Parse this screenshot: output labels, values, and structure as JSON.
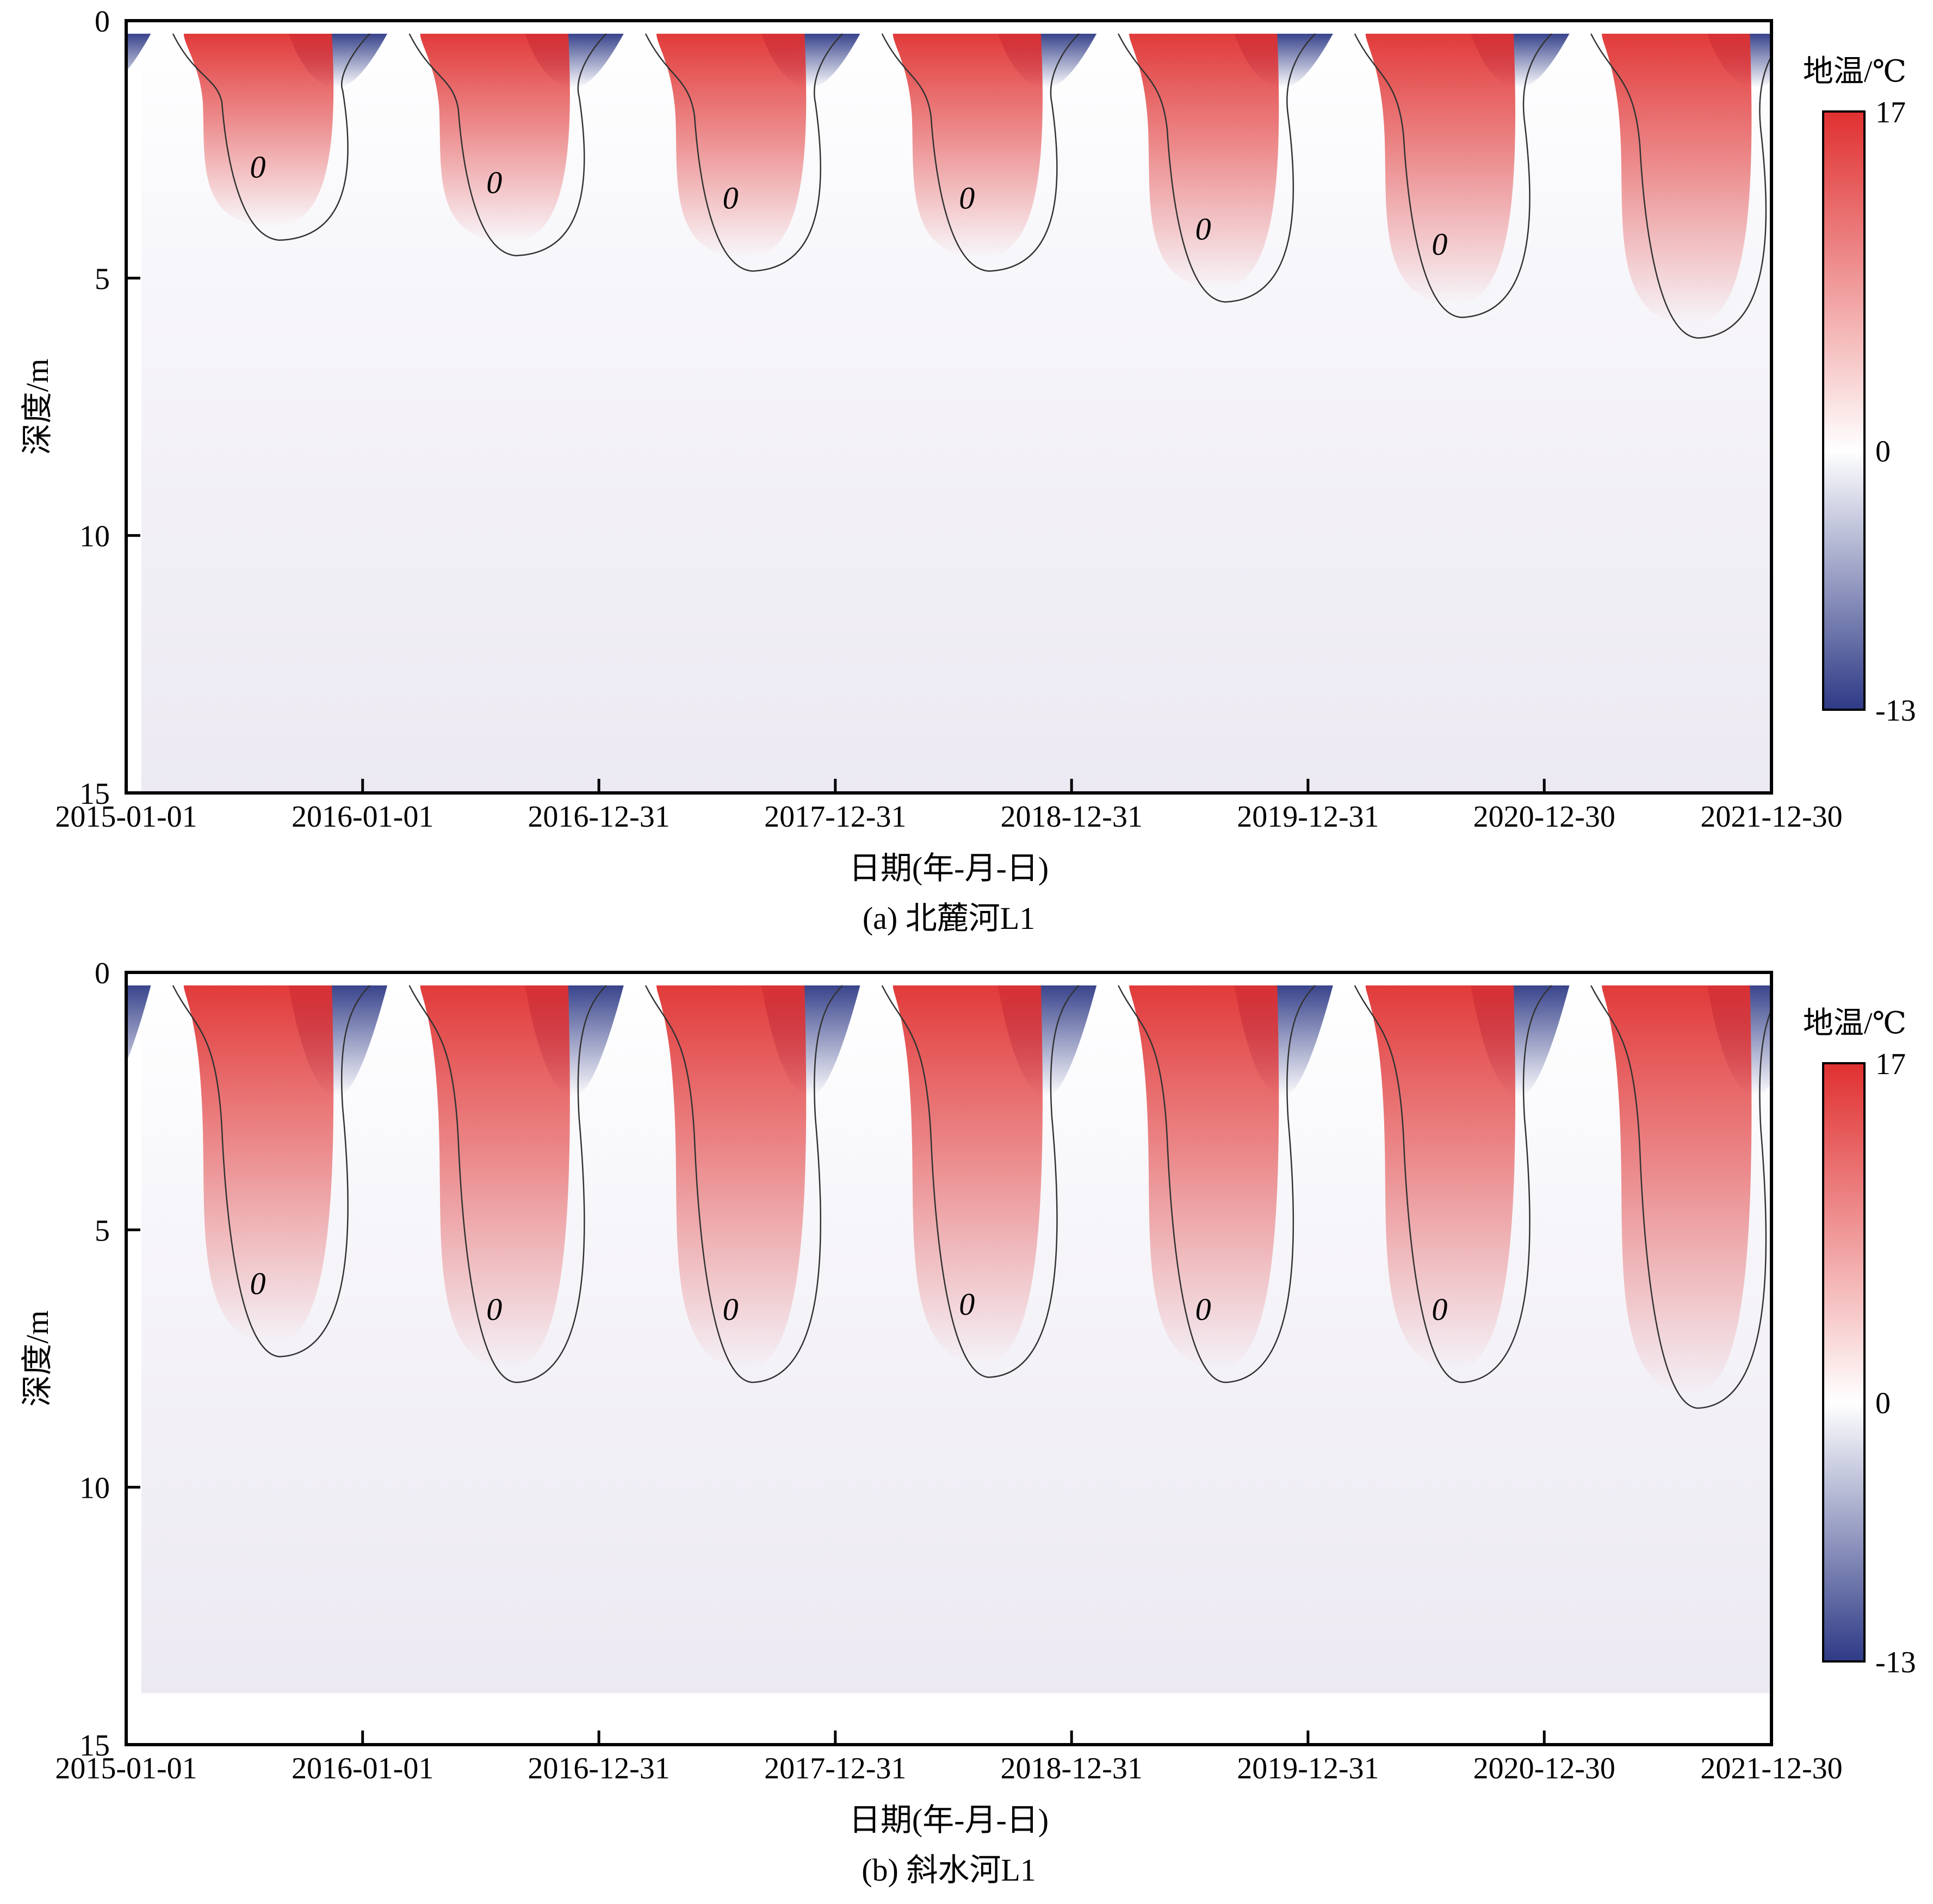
{
  "colors": {
    "warm_max": "#e03030",
    "neutral": "#ffffff",
    "cold_min": "#2e3a86",
    "contour_line": "#333333",
    "deep_tint": "#ece9f2"
  },
  "chart_data": [
    {
      "type": "heatmap",
      "caption": "(a) 北麓河L1",
      "xlabel": "日期(年-月-日)",
      "ylabel": "深度/m",
      "x_ticks": [
        "2015-01-01",
        "2016-01-01",
        "2016-12-31",
        "2017-12-31",
        "2018-12-31",
        "2019-12-31",
        "2020-12-30",
        "2021-12-30"
      ],
      "y_ticks": [
        "0",
        "5",
        "10",
        "15"
      ],
      "xlim": [
        "2015-01-01",
        "2021-12-30"
      ],
      "ylim": [
        0,
        15
      ],
      "y_inverted": true,
      "colorbar": {
        "title": "地温/℃",
        "max_label": "17",
        "mid_label": "0",
        "min_label": "-13",
        "min": -13,
        "max": 17
      },
      "contour_level": 0,
      "contour_labels": [
        "0",
        "0",
        "0",
        "0",
        "0",
        "0"
      ],
      "summer_thaw_depth_m": [
        4.0,
        4.3,
        4.6,
        4.6,
        5.2,
        5.5,
        5.9
      ],
      "deep_temperature_c": -0.6
    },
    {
      "type": "heatmap",
      "caption": "(b) 斜水河L1",
      "xlabel": "日期(年-月-日)",
      "ylabel": "深度/m",
      "x_ticks": [
        "2015-01-01",
        "2016-01-01",
        "2016-12-31",
        "2017-12-31",
        "2018-12-31",
        "2019-12-31",
        "2020-12-30",
        "2021-12-30"
      ],
      "y_ticks": [
        "0",
        "5",
        "10",
        "15"
      ],
      "xlim": [
        "2015-01-01",
        "2021-12-30"
      ],
      "ylim": [
        0,
        15
      ],
      "y_inverted": true,
      "colorbar": {
        "title": "地温/℃",
        "max_label": "17",
        "mid_label": "0",
        "min_label": "-13",
        "min": -13,
        "max": 17
      },
      "contour_level": 0,
      "contour_labels": [
        "0",
        "0",
        "0",
        "0",
        "0",
        "0"
      ],
      "summer_thaw_depth_m": [
        7.2,
        7.7,
        7.7,
        7.6,
        7.7,
        7.7,
        8.2
      ],
      "deep_temperature_c": -0.4
    }
  ]
}
